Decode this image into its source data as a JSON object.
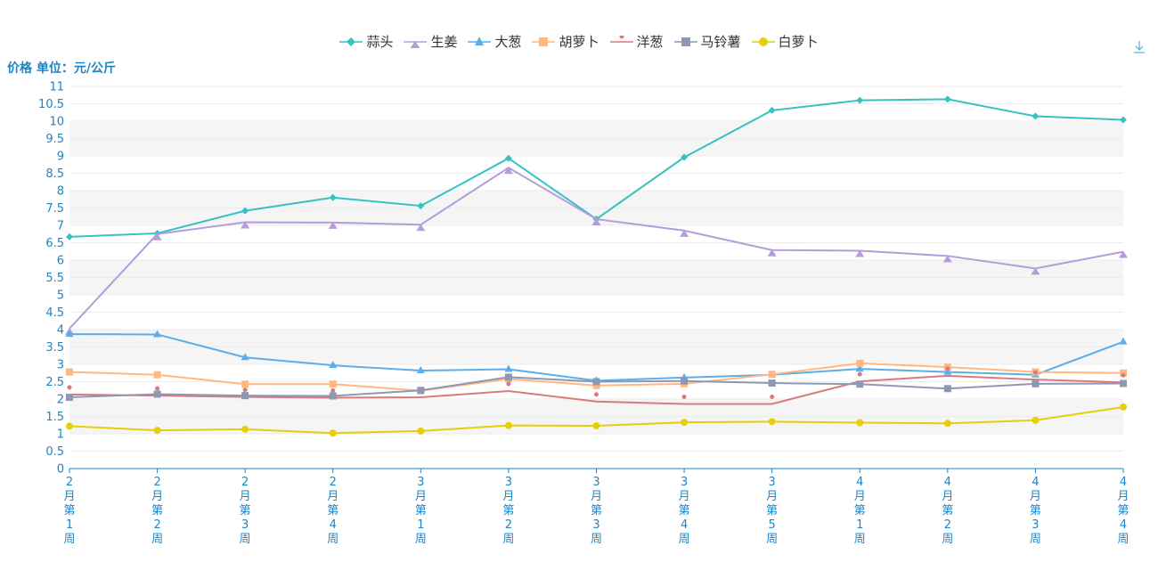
{
  "y_axis_title": "价格 单位：元/公斤",
  "chart_data": {
    "type": "line",
    "title": "",
    "ylabel": "价格 单位：元/公斤",
    "xlabel": "",
    "ylim": [
      0,
      11
    ],
    "ytick_step": 0.5,
    "legend_position": "top-center",
    "grid": "horizontal bands",
    "categories": [
      "2月第1周",
      "2月第2周",
      "2月第3周",
      "2月第4周",
      "3月第1周",
      "3月第2周",
      "3月第3周",
      "3月第4周",
      "3月第5周",
      "4月第1周",
      "4月第2周",
      "4月第3周",
      "4月第4周"
    ],
    "series": [
      {
        "name": "蒜头",
        "color": "#36c2c2",
        "marker": "diamond",
        "values": [
          6.67,
          6.77,
          7.42,
          7.8,
          7.56,
          8.93,
          7.18,
          8.96,
          10.31,
          10.6,
          10.63,
          10.14,
          10.04
        ]
      },
      {
        "name": "生姜",
        "color": "#b59ddb",
        "marker": "triangle-down",
        "values": [
          4.03,
          6.75,
          7.09,
          7.08,
          7.02,
          8.66,
          7.18,
          6.85,
          6.29,
          6.27,
          6.12,
          5.76,
          6.24
        ]
      },
      {
        "name": "大葱",
        "color": "#5aaeea",
        "marker": "triangle",
        "values": [
          3.87,
          3.86,
          3.2,
          2.97,
          2.82,
          2.86,
          2.53,
          2.62,
          2.7,
          2.87,
          2.78,
          2.7,
          3.65
        ]
      },
      {
        "name": "胡萝卜",
        "color": "#ffb980",
        "marker": "square",
        "values": [
          2.78,
          2.7,
          2.43,
          2.43,
          2.24,
          2.58,
          2.39,
          2.44,
          2.71,
          3.03,
          2.92,
          2.78,
          2.75
        ]
      },
      {
        "name": "洋葱",
        "color": "#d87a80",
        "marker": "pin",
        "values": [
          2.13,
          2.1,
          2.06,
          2.04,
          2.05,
          2.23,
          1.93,
          1.86,
          1.86,
          2.51,
          2.67,
          2.56,
          2.48
        ]
      },
      {
        "name": "马铃薯",
        "color": "#8d98b3",
        "marker": "square",
        "values": [
          2.05,
          2.14,
          2.1,
          2.09,
          2.25,
          2.63,
          2.5,
          2.52,
          2.46,
          2.43,
          2.3,
          2.44,
          2.45
        ]
      },
      {
        "name": "白萝卜",
        "color": "#e5cf0d",
        "marker": "circle",
        "values": [
          1.22,
          1.1,
          1.13,
          1.02,
          1.08,
          1.24,
          1.23,
          1.33,
          1.35,
          1.32,
          1.3,
          1.39,
          1.77
        ]
      }
    ]
  }
}
